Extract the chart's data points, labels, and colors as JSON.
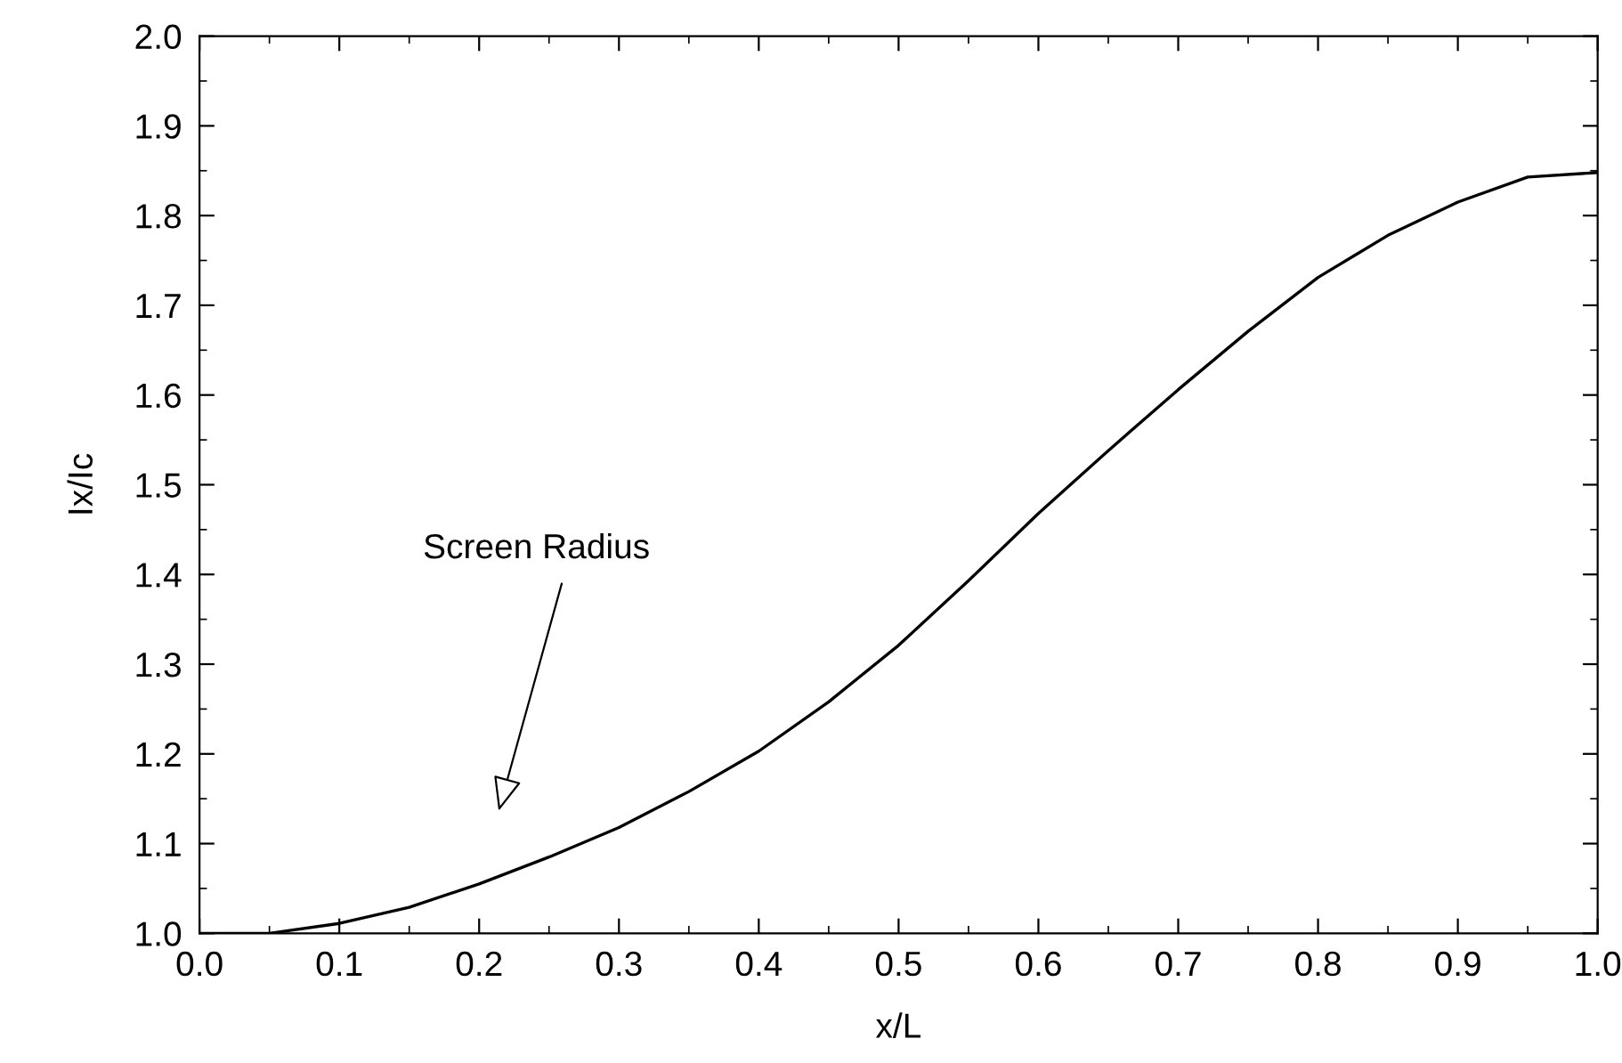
{
  "chart_data": {
    "type": "line",
    "xlabel": "x/L",
    "ylabel": "Ix/Ic",
    "x": [
      0,
      0.05,
      0.1,
      0.15,
      0.2,
      0.25,
      0.3,
      0.35,
      0.4,
      0.45,
      0.5,
      0.55,
      0.6,
      0.65,
      0.7,
      0.75,
      0.8,
      0.85,
      0.9,
      0.95,
      1.0
    ],
    "series": [
      {
        "color": "#000000",
        "values": [
          1.0,
          1.0,
          1.011,
          1.029,
          1.055,
          1.085,
          1.118,
          1.158,
          1.203,
          1.258,
          1.321,
          1.393,
          1.468,
          1.538,
          1.606,
          1.671,
          1.731,
          1.778,
          1.815,
          1.843,
          1.848
        ]
      }
    ],
    "xlim": [
      0,
      1.0
    ],
    "ylim": [
      1.0,
      2.0
    ],
    "xticks": [
      {
        "value": 0,
        "label": "0.0"
      },
      0.1,
      0.2,
      0.3,
      0.4,
      0.5,
      0.6,
      0.7,
      0.8,
      0.9,
      {
        "value": 1.0,
        "label": "1.0"
      }
    ],
    "yticks": [
      {
        "value": 1.0,
        "label": "1.0"
      },
      1.1,
      1.2,
      1.3,
      1.4,
      1.5,
      1.6,
      1.7,
      1.8,
      1.9,
      {
        "value": 2.0,
        "label": "2.0"
      }
    ],
    "annotations": [
      "Screen Radius"
    ],
    "grid": false,
    "legend": false,
    "marker": "none",
    "line_style": "solid"
  }
}
